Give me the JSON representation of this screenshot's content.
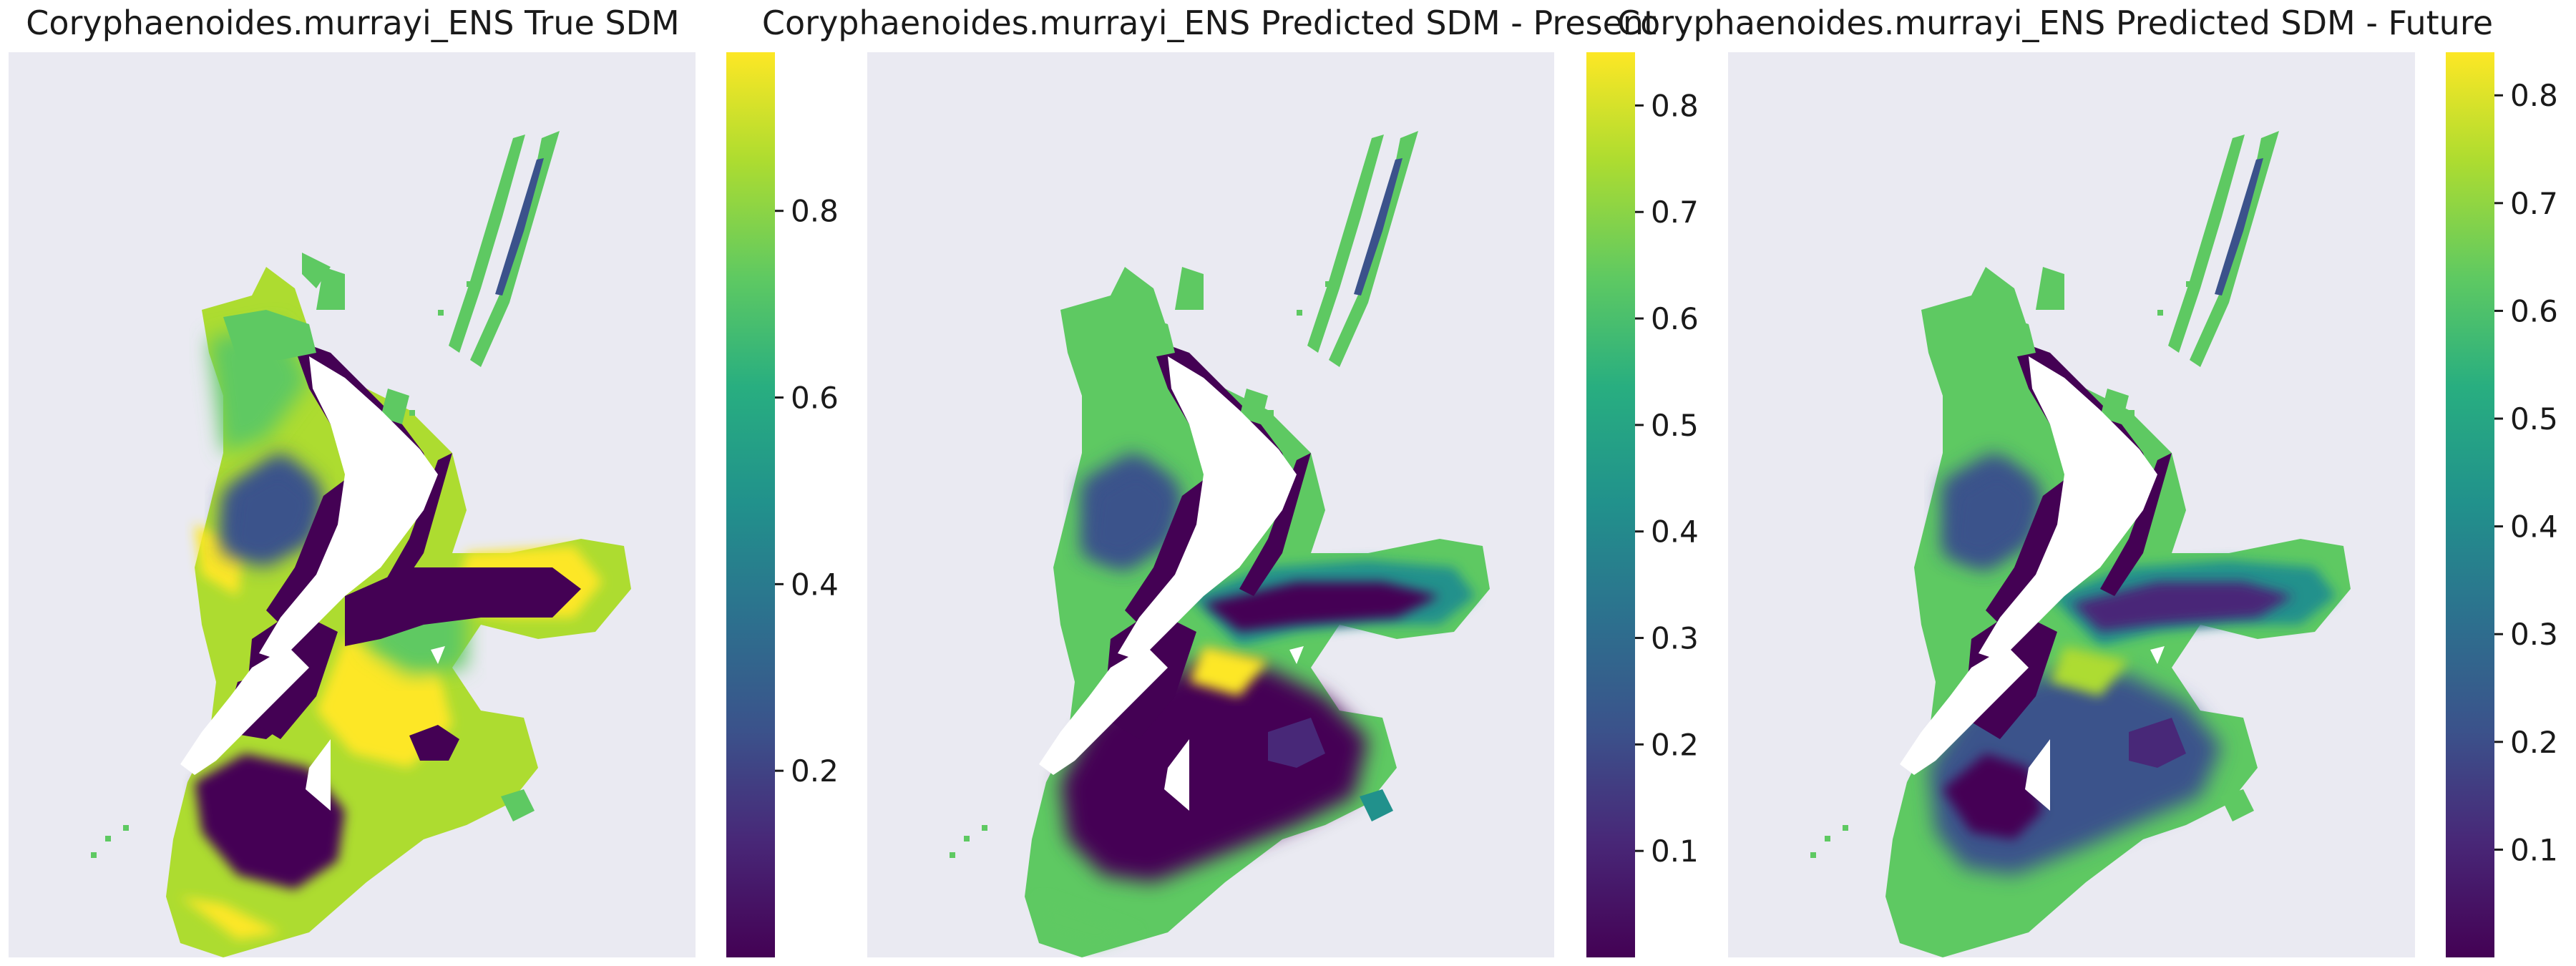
{
  "chart_data": [
    {
      "type": "heatmap",
      "title": "Coryphaenoides.murrayi_ENS True SDM",
      "colormap": "viridis",
      "colorbar": {
        "range": [
          0.0,
          0.97
        ],
        "ticks": [
          0.2,
          0.4,
          0.6,
          0.8
        ],
        "tick_labels": [
          "0.2",
          "0.4",
          "0.6",
          "0.8"
        ]
      },
      "background": "#eaeaf2",
      "grid": false
    },
    {
      "type": "heatmap",
      "title": "Coryphaenoides.murrayi_ENS Predicted SDM - Present",
      "colormap": "viridis",
      "colorbar": {
        "range": [
          0.0,
          0.85
        ],
        "ticks": [
          0.1,
          0.2,
          0.3,
          0.4,
          0.5,
          0.6,
          0.7,
          0.8
        ],
        "tick_labels": [
          "0.1",
          "0.2",
          "0.3",
          "0.4",
          "0.5",
          "0.6",
          "0.7",
          "0.8"
        ]
      },
      "background": "#eaeaf2",
      "grid": false
    },
    {
      "type": "heatmap",
      "title": "Coryphaenoides.murrayi_ENS Predicted SDM - Future",
      "colormap": "viridis",
      "colorbar": {
        "range": [
          0.0,
          0.84
        ],
        "ticks": [
          0.1,
          0.2,
          0.3,
          0.4,
          0.5,
          0.6,
          0.7,
          0.8
        ],
        "tick_labels": [
          "0.1",
          "0.2",
          "0.3",
          "0.4",
          "0.5",
          "0.6",
          "0.7",
          "0.8"
        ]
      },
      "background": "#eaeaf2",
      "grid": false
    }
  ],
  "colors": {
    "viridis_low": "#440154",
    "viridis_q1": "#3b528b",
    "viridis_mid": "#21918c",
    "viridis_q3": "#5ec962",
    "viridis_high": "#fde725",
    "axes_background": "#eaeaf2",
    "land": "#ffffff"
  }
}
